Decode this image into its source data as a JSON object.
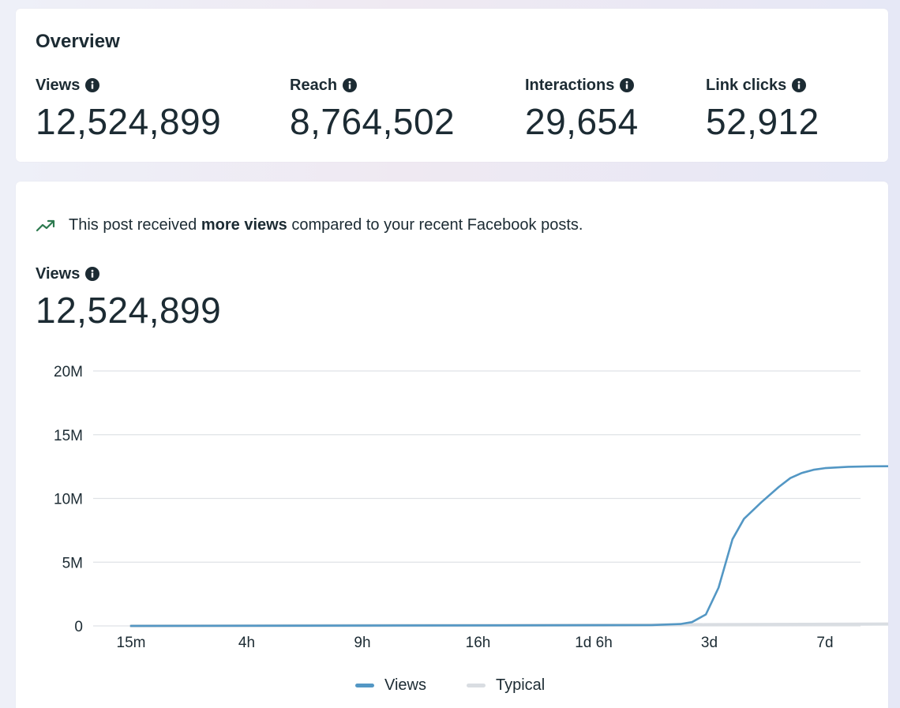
{
  "overview": {
    "title": "Overview",
    "metrics": [
      {
        "label": "Views",
        "value": "12,524,899"
      },
      {
        "label": "Reach",
        "value": "8,764,502"
      },
      {
        "label": "Interactions",
        "value": "29,654"
      },
      {
        "label": "Link clicks",
        "value": "52,912"
      }
    ]
  },
  "insight": {
    "prefix": "This post received ",
    "emphasis": "more views",
    "suffix": " compared to your recent Facebook posts."
  },
  "views_section": {
    "label": "Views",
    "value": "12,524,899"
  },
  "colors": {
    "views_series": "#5397c4",
    "typical_series": "#d9dde2",
    "trend_icon": "#2d7a4f",
    "grid": "#dfe2e6"
  },
  "chart_data": {
    "type": "line",
    "x_ticks": [
      "15m",
      "4h",
      "9h",
      "16h",
      "1d 6h",
      "3d",
      "7d"
    ],
    "y_ticks": [
      "0",
      "5M",
      "10M",
      "15M",
      "20M"
    ],
    "ylim": [
      0,
      20000000
    ],
    "grid": true,
    "legend_position": "bottom-center",
    "series": [
      {
        "name": "Views",
        "points": [
          {
            "x": 0.0,
            "y": 0
          },
          {
            "x": 4.5,
            "y": 60000
          },
          {
            "x": 4.75,
            "y": 150000
          },
          {
            "x": 4.85,
            "y": 300000
          },
          {
            "x": 4.97,
            "y": 900000
          },
          {
            "x": 5.08,
            "y": 3000000
          },
          {
            "x": 5.2,
            "y": 6800000
          },
          {
            "x": 5.3,
            "y": 8400000
          },
          {
            "x": 5.45,
            "y": 9700000
          },
          {
            "x": 5.6,
            "y": 10900000
          },
          {
            "x": 5.7,
            "y": 11600000
          },
          {
            "x": 5.8,
            "y": 12000000
          },
          {
            "x": 5.9,
            "y": 12250000
          },
          {
            "x": 6.0,
            "y": 12380000
          },
          {
            "x": 6.2,
            "y": 12480000
          },
          {
            "x": 6.4,
            "y": 12520000
          },
          {
            "x": 6.6,
            "y": 12524899
          }
        ]
      },
      {
        "name": "Typical",
        "points": [
          {
            "x": 0.0,
            "y": 0
          },
          {
            "x": 2.0,
            "y": 30000
          },
          {
            "x": 4.0,
            "y": 60000
          },
          {
            "x": 5.0,
            "y": 100000
          },
          {
            "x": 6.6,
            "y": 150000
          }
        ]
      }
    ]
  }
}
